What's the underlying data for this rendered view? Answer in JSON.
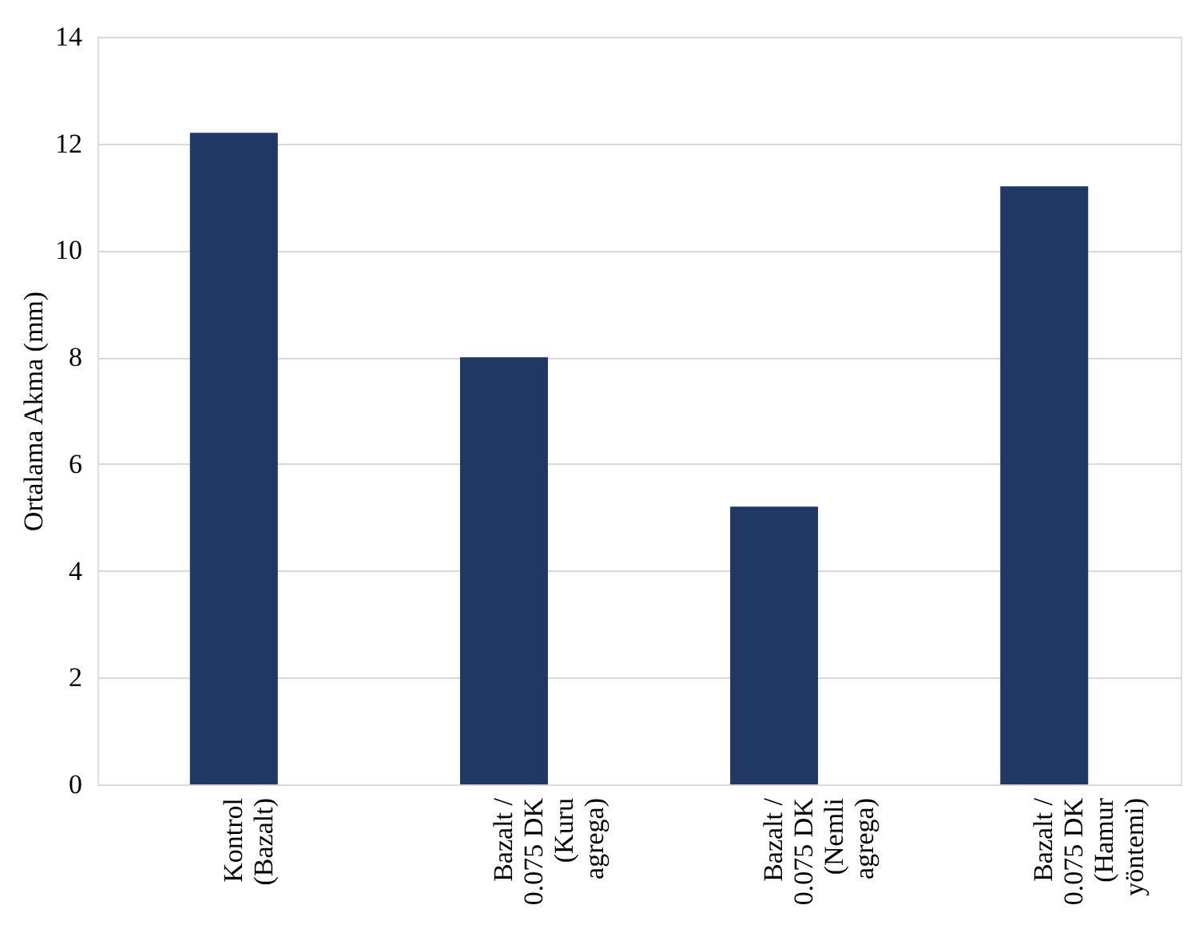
{
  "chart_data": {
    "type": "bar",
    "ylabel": "Ortalama Akma (mm)",
    "categories": [
      "Kontrol\n(Bazalt)",
      "Bazalt /\n0.075 DK\n(Kuru\nagrega)",
      "Bazalt /\n0.075 DK\n(Nemli\nagrega)",
      "Bazalt /\n0.075 DK\n(Hamur\nyöntemi)"
    ],
    "values": [
      12.2,
      8.0,
      5.2,
      11.2
    ],
    "color": "#203864",
    "ylim": [
      0,
      14
    ],
    "yticks": [
      0,
      2,
      4,
      6,
      8,
      10,
      12,
      14
    ],
    "grid": "y"
  }
}
